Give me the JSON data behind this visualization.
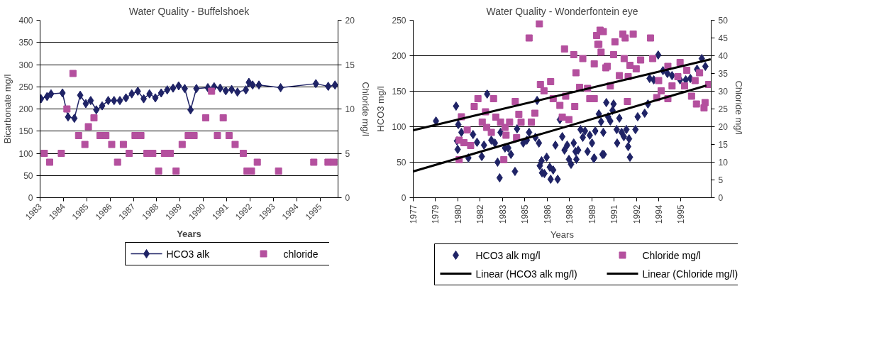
{
  "chart_data": [
    {
      "type": "line",
      "title": "Water Quality - Buffelshoek",
      "xlabel": "Years",
      "ylabel": "Bicarbonate mg/l",
      "y2label": "Chloride mg/l",
      "xlim": [
        1983,
        1995.77
      ],
      "xticks": [
        1983,
        1984,
        1985,
        1986,
        1987,
        1988,
        1989,
        1990,
        1991,
        1992,
        1993,
        1994,
        1995
      ],
      "ylim": [
        0,
        400
      ],
      "yticks": [
        0,
        50,
        100,
        150,
        200,
        250,
        300,
        350,
        400
      ],
      "y2lim": [
        0,
        20
      ],
      "y2ticks": [
        0,
        5,
        10,
        15,
        20
      ],
      "grid": "y",
      "legend": "bottom",
      "series": [
        {
          "name": "HCO3 alk",
          "marker": "diamond",
          "color": "#1f2366",
          "x": [
            1983.04,
            1983.3,
            1983.47,
            1983.96,
            1984.2,
            1984.47,
            1984.72,
            1984.96,
            1985.17,
            1985.41,
            1985.66,
            1985.92,
            1986.17,
            1986.42,
            1986.68,
            1986.93,
            1987.19,
            1987.44,
            1987.69,
            1987.94,
            1988.19,
            1988.45,
            1988.7,
            1988.94,
            1989.2,
            1989.45,
            1989.7,
            1990.19,
            1990.46,
            1990.72,
            1990.96,
            1991.21,
            1991.46,
            1991.82,
            1991.95,
            1992.11,
            1992.38,
            1993.31,
            1994.82,
            1995.35,
            1995.64
          ],
          "values": [
            223,
            228,
            234,
            236,
            182,
            179,
            231,
            212,
            219,
            198,
            207,
            219,
            219,
            219,
            225,
            234,
            240,
            223,
            234,
            225,
            236,
            243,
            247,
            252,
            246,
            198,
            246,
            248,
            250,
            247,
            241,
            244,
            238,
            243,
            260,
            254,
            254,
            248,
            257,
            251,
            254
          ]
        },
        {
          "name": "chloride",
          "type": "scatter",
          "marker": "square",
          "color": "#b4509e",
          "axis": "y2",
          "x": [
            1983.18,
            1983.41,
            1983.91,
            1984.15,
            1984.41,
            1984.65,
            1984.92,
            1985.07,
            1985.31,
            1985.57,
            1985.82,
            1986.07,
            1986.32,
            1986.57,
            1986.82,
            1987.07,
            1987.32,
            1987.58,
            1987.83,
            1988.08,
            1988.33,
            1988.58,
            1988.83,
            1989.09,
            1989.35,
            1989.6,
            1990.1,
            1990.35,
            1990.6,
            1990.85,
            1991.1,
            1991.36,
            1991.71,
            1991.87,
            1992.06,
            1992.31,
            1993.22,
            1994.73,
            1995.34,
            1995.59
          ],
          "values": [
            5,
            4,
            5,
            10,
            14,
            7,
            6,
            8,
            9,
            7,
            7,
            6,
            4,
            6,
            5,
            7,
            7,
            5,
            5,
            3,
            5,
            5,
            3,
            6,
            7,
            7,
            9,
            12,
            7,
            9,
            7,
            6,
            5,
            3,
            3,
            4,
            3,
            4,
            4,
            4
          ]
        }
      ]
    },
    {
      "type": "scatter",
      "title": "Water Quality - Wonderfontein eye",
      "xlabel": "Years",
      "ylabel": "HCO3 mg/l",
      "y2label": "Chloride  mg/l",
      "xlim": [
        1977.5,
        1997.53
      ],
      "xticks": [
        {
          "value": 1977.5,
          "label": "1977"
        },
        {
          "value": 1979,
          "label": "1979"
        },
        {
          "value": 1980.5,
          "label": "1980"
        },
        {
          "value": 1982,
          "label": "1982"
        },
        {
          "value": 1983.5,
          "label": "1983"
        },
        {
          "value": 1985,
          "label": "1985"
        },
        {
          "value": 1986.5,
          "label": "1986"
        },
        {
          "value": 1988,
          "label": "1988"
        },
        {
          "value": 1989.5,
          "label": "1989"
        },
        {
          "value": 1991,
          "label": "1991"
        },
        {
          "value": 1992.5,
          "label": "1992"
        },
        {
          "value": 1994,
          "label": "1994"
        },
        {
          "value": 1995.5,
          "label": "1995"
        }
      ],
      "ylim": [
        0,
        250
      ],
      "yticks": [
        0,
        50,
        100,
        150,
        200,
        250
      ],
      "y2lim": [
        0,
        50
      ],
      "y2ticks": [
        0,
        5,
        10,
        15,
        20,
        25,
        30,
        35,
        40,
        45,
        50
      ],
      "grid": "y",
      "legend": "bottom",
      "series": [
        {
          "name": "HCO3 alk mg/l",
          "marker": "diamond",
          "color": "#1f2366",
          "x": [
            1979.03,
            1980.38,
            1980.53,
            1980.44,
            1980.49,
            1980.74,
            1981.21,
            1981.52,
            1981.79,
            1982.11,
            1982.26,
            1982.47,
            1982.75,
            1982.99,
            1983.17,
            1983.31,
            1983.37,
            1983.67,
            1983.89,
            1984.07,
            1984.34,
            1984.48,
            1984.9,
            1985.14,
            1985.29,
            1985.71,
            1985.83,
            1985.95,
            1986.01,
            1986.13,
            1986.16,
            1986.32,
            1986.47,
            1986.68,
            1986.74,
            1986.91,
            1987.06,
            1987.21,
            1987.36,
            1987.52,
            1987.67,
            1987.85,
            1987.97,
            1988.11,
            1988.29,
            1988.41,
            1988.47,
            1988.59,
            1988.75,
            1988.9,
            1989.05,
            1989.22,
            1989.37,
            1989.52,
            1989.67,
            1989.74,
            1989.98,
            1990.13,
            1990.22,
            1989.64,
            1990.28,
            1990.31,
            1990.48,
            1990.6,
            1990.75,
            1990.9,
            1990.97,
            1991.18,
            1991.21,
            1991.36,
            1991.51,
            1991.66,
            1991.83,
            1991.95,
            1992.01,
            1992.07,
            1992.44,
            1992.59,
            1993.06,
            1993.28,
            1993.39,
            1993.67,
            1993.97,
            1994.29,
            1994.59,
            1994.9,
            1995.44,
            1995.82,
            1996.13,
            1996.58,
            1996.9,
            1997.14
          ],
          "values": [
            108,
            129,
            103,
            80,
            68,
            92,
            56,
            89,
            78,
            58,
            74,
            146,
            81,
            77,
            50,
            28,
            92,
            70,
            70,
            61,
            37,
            97,
            77,
            81,
            92,
            85,
            137,
            77,
            45,
            52,
            35,
            34,
            57,
            43,
            26,
            39,
            74,
            26,
            110,
            86,
            67,
            74,
            54,
            47,
            77,
            65,
            54,
            67,
            96,
            85,
            94,
            65,
            88,
            77,
            56,
            94,
            118,
            107,
            61,
            55,
            92,
            61,
            134,
            114,
            108,
            123,
            132,
            96,
            77,
            112,
            92,
            86,
            96,
            72,
            83,
            57,
            96,
            114,
            119,
            132,
            168,
            166,
            201,
            179,
            175,
            172,
            166,
            166,
            168,
            181,
            196,
            185
          ]
        },
        {
          "name": "Chloride mg/l",
          "marker": "square",
          "color": "#b4509e",
          "axis": "y2",
          "x": [
            1980.74,
            1980.59,
            1980.91,
            1981.13,
            1981.36,
            1980.59,
            1981.6,
            1981.85,
            1982.36,
            1982.9,
            1982.14,
            1982.44,
            1982.75,
            1983.05,
            1983.37,
            1983.67,
            1983.98,
            1983.74,
            1983.59,
            1984.36,
            1984.45,
            1984.6,
            1984.75,
            1985.29,
            1985.44,
            1985.68,
            1985.98,
            1986.05,
            1986.29,
            1986.74,
            1986.91,
            1987.36,
            1987.67,
            1987.75,
            1987.52,
            1987.97,
            1988.29,
            1988.36,
            1988.44,
            1988.68,
            1988.9,
            1989.22,
            1989.37,
            1989.67,
            1989.83,
            1989.98,
            1990.06,
            1990.13,
            1990.45,
            1990.28,
            1989.91,
            1991.06,
            1990.97,
            1991.59,
            1991.75,
            1992.29,
            1991.68,
            1992.07,
            1992.79,
            1992.49,
            1993.45,
            1993.6,
            1990.55,
            1990.75,
            1991.36,
            1991.95,
            1991.9,
            1989.67,
            1993.87,
            1994.17,
            1994.62,
            1994.9,
            1995.44,
            1995.29,
            1995.74,
            1995.89,
            1996.21,
            1996.45,
            1996.75,
            1996.54,
            1997.05,
            1997.12,
            1997.36,
            1994.62,
            1994.0
          ],
          "values": [
            22.8,
            16.2,
            15.5,
            19.1,
            14.7,
            10.7,
            25.7,
            27.9,
            24.2,
            27.9,
            21.3,
            19.8,
            18.4,
            22.7,
            21.3,
            19.8,
            21.3,
            17.6,
            10.7,
            27.1,
            16.9,
            23.5,
            21.3,
            45.0,
            21.3,
            23.8,
            49.0,
            31.9,
            30.1,
            32.7,
            27.9,
            26.0,
            41.9,
            28.6,
            22.7,
            22.0,
            40.3,
            25.7,
            35.2,
            31.1,
            39.2,
            30.8,
            27.9,
            37.7,
            45.7,
            43.2,
            47.2,
            41.0,
            36.6,
            46.8,
            43.2,
            43.9,
            40.3,
            46.1,
            45.0,
            46.1,
            39.2,
            37.3,
            38.8,
            36.3,
            45.0,
            39.2,
            37.0,
            31.5,
            34.4,
            34.1,
            27.1,
            27.9,
            28.2,
            30.1,
            37.0,
            31.5,
            38.1,
            34.1,
            31.5,
            35.9,
            28.6,
            33.0,
            35.2,
            26.4,
            25.3,
            26.8,
            31.9,
            27.9,
            33.0
          ]
        },
        {
          "name": "Linear (HCO3 alk mg/l)",
          "type": "line",
          "color": "#000000",
          "x": [
            1977.5,
            1997.21
          ],
          "values": [
            37,
            158
          ]
        },
        {
          "name": "Linear (Chloride mg/l)",
          "type": "line",
          "color": "#000000",
          "axis": "y2",
          "x": [
            1977.5,
            1997.5
          ],
          "values": [
            19,
            39
          ]
        }
      ]
    }
  ]
}
